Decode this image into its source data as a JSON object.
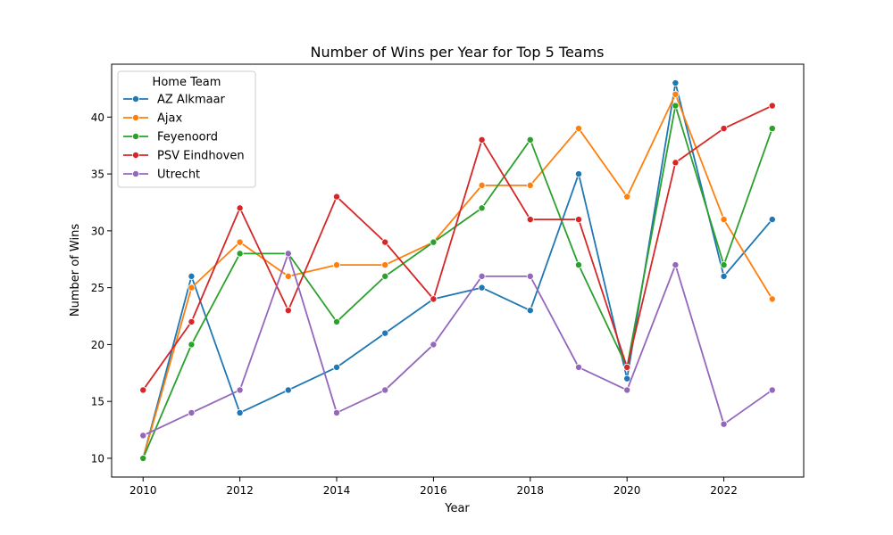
{
  "chart_data": {
    "type": "line",
    "title": "Number of Wins per Year for Top 5 Teams",
    "xlabel": "Year",
    "ylabel": "Number of Wins",
    "xlim": [
      2009.35,
      2023.65
    ],
    "ylim": [
      8.35,
      44.65
    ],
    "xticks": [
      2010,
      2012,
      2014,
      2016,
      2018,
      2020,
      2022
    ],
    "yticks": [
      10,
      15,
      20,
      25,
      30,
      35,
      40
    ],
    "grid": false,
    "legend": {
      "title": "Home Team",
      "placement": "top-left"
    },
    "x": [
      2010,
      2011,
      2012,
      2013,
      2014,
      2015,
      2016,
      2017,
      2018,
      2019,
      2020,
      2021,
      2022,
      2023
    ],
    "series": [
      {
        "name": "AZ Alkmaar",
        "color": "#1f77b4",
        "values": [
          10,
          26,
          14,
          16,
          18,
          21,
          24,
          25,
          23,
          35,
          17,
          43,
          26,
          31
        ]
      },
      {
        "name": "Ajax",
        "color": "#ff7f0e",
        "values": [
          10,
          25,
          29,
          26,
          27,
          27,
          29,
          34,
          34,
          39,
          33,
          42,
          31,
          24
        ]
      },
      {
        "name": "Feyenoord",
        "color": "#2ca02c",
        "values": [
          10,
          20,
          28,
          28,
          22,
          26,
          29,
          32,
          38,
          27,
          18,
          41,
          27,
          39
        ]
      },
      {
        "name": "PSV Eindhoven",
        "color": "#d62728",
        "values": [
          16,
          22,
          32,
          23,
          33,
          29,
          24,
          38,
          31,
          31,
          18,
          36,
          39,
          41
        ]
      },
      {
        "name": "Utrecht",
        "color": "#9467bd",
        "values": [
          12,
          14,
          16,
          28,
          14,
          16,
          20,
          26,
          26,
          18,
          16,
          27,
          13,
          16
        ]
      }
    ]
  }
}
